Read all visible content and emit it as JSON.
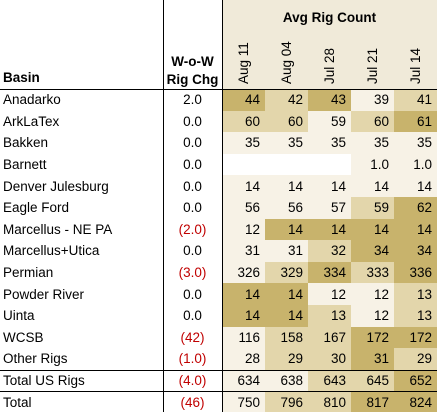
{
  "header": {
    "group_title": "Avg Rig Count",
    "basin_label": "Basin",
    "chg_label_1": "W-o-W",
    "chg_label_2": "Rig Chg",
    "weeks": [
      "Aug 11",
      "Aug 04",
      "Jul 28",
      "Jul 21",
      "Jul 14"
    ]
  },
  "colors": {
    "header_band": "#f0ead9",
    "heat_low": "#f7f2e6",
    "heat_mid": "#e3d6ab",
    "heat_high": "#c8b36c",
    "negative": "#c00000"
  },
  "chart_data": {
    "type": "table",
    "title": "Avg Rig Count",
    "columns": [
      "Basin",
      "W-o-W Rig Chg",
      "Aug 11",
      "Aug 04",
      "Jul 28",
      "Jul 21",
      "Jul 14"
    ],
    "rows": [
      {
        "basin": "Anadarko",
        "chg": "2.0",
        "neg": false,
        "values": [
          "44",
          "42",
          "43",
          "39",
          "41"
        ],
        "heat": [
          3,
          2,
          3,
          1,
          2
        ]
      },
      {
        "basin": "ArkLaTex",
        "chg": "0.0",
        "neg": false,
        "values": [
          "60",
          "60",
          "59",
          "60",
          "61"
        ],
        "heat": [
          2,
          2,
          1,
          2,
          3
        ]
      },
      {
        "basin": "Bakken",
        "chg": "0.0",
        "neg": false,
        "values": [
          "35",
          "35",
          "35",
          "35",
          "35"
        ],
        "heat": [
          1,
          1,
          1,
          1,
          1
        ]
      },
      {
        "basin": "Barnett",
        "chg": "0.0",
        "neg": false,
        "values": [
          "",
          "",
          "",
          "1.0",
          "1.0"
        ],
        "heat": [
          0,
          0,
          0,
          1,
          1
        ]
      },
      {
        "basin": "Denver Julesburg",
        "chg": "0.0",
        "neg": false,
        "values": [
          "14",
          "14",
          "14",
          "14",
          "14"
        ],
        "heat": [
          1,
          1,
          1,
          1,
          1
        ]
      },
      {
        "basin": "Eagle Ford",
        "chg": "0.0",
        "neg": false,
        "values": [
          "56",
          "56",
          "57",
          "59",
          "62"
        ],
        "heat": [
          1,
          1,
          1,
          2,
          3
        ]
      },
      {
        "basin": "Marcellus - NE PA",
        "chg": "(2.0)",
        "neg": true,
        "values": [
          "12",
          "14",
          "14",
          "14",
          "14"
        ],
        "heat": [
          1,
          3,
          3,
          3,
          3
        ]
      },
      {
        "basin": "Marcellus+Utica",
        "chg": "0.0",
        "neg": false,
        "values": [
          "31",
          "31",
          "32",
          "34",
          "34"
        ],
        "heat": [
          1,
          1,
          2,
          3,
          3
        ]
      },
      {
        "basin": "Permian",
        "chg": "(3.0)",
        "neg": true,
        "values": [
          "326",
          "329",
          "334",
          "333",
          "336"
        ],
        "heat": [
          1,
          2,
          3,
          2,
          3
        ]
      },
      {
        "basin": "Powder River",
        "chg": "0.0",
        "neg": false,
        "values": [
          "14",
          "14",
          "12",
          "12",
          "13"
        ],
        "heat": [
          3,
          3,
          1,
          1,
          2
        ]
      },
      {
        "basin": "Uinta",
        "chg": "0.0",
        "neg": false,
        "values": [
          "14",
          "14",
          "13",
          "12",
          "13"
        ],
        "heat": [
          3,
          3,
          2,
          1,
          2
        ]
      },
      {
        "basin": "WCSB",
        "chg": "(42)",
        "neg": true,
        "values": [
          "116",
          "158",
          "167",
          "172",
          "172"
        ],
        "heat": [
          1,
          2,
          2,
          3,
          3
        ]
      },
      {
        "basin": "Other Rigs",
        "chg": "(1.0)",
        "neg": true,
        "values": [
          "28",
          "29",
          "30",
          "31",
          "29"
        ],
        "heat": [
          1,
          2,
          2,
          3,
          2
        ]
      },
      {
        "basin": "Total US Rigs",
        "chg": "(4.0)",
        "neg": true,
        "values": [
          "634",
          "638",
          "643",
          "645",
          "652"
        ],
        "heat": [
          1,
          1,
          2,
          2,
          3
        ]
      },
      {
        "basin": "Total",
        "chg": "(46)",
        "neg": true,
        "values": [
          "750",
          "796",
          "810",
          "817",
          "824"
        ],
        "heat": [
          1,
          2,
          2,
          3,
          3
        ]
      }
    ]
  }
}
